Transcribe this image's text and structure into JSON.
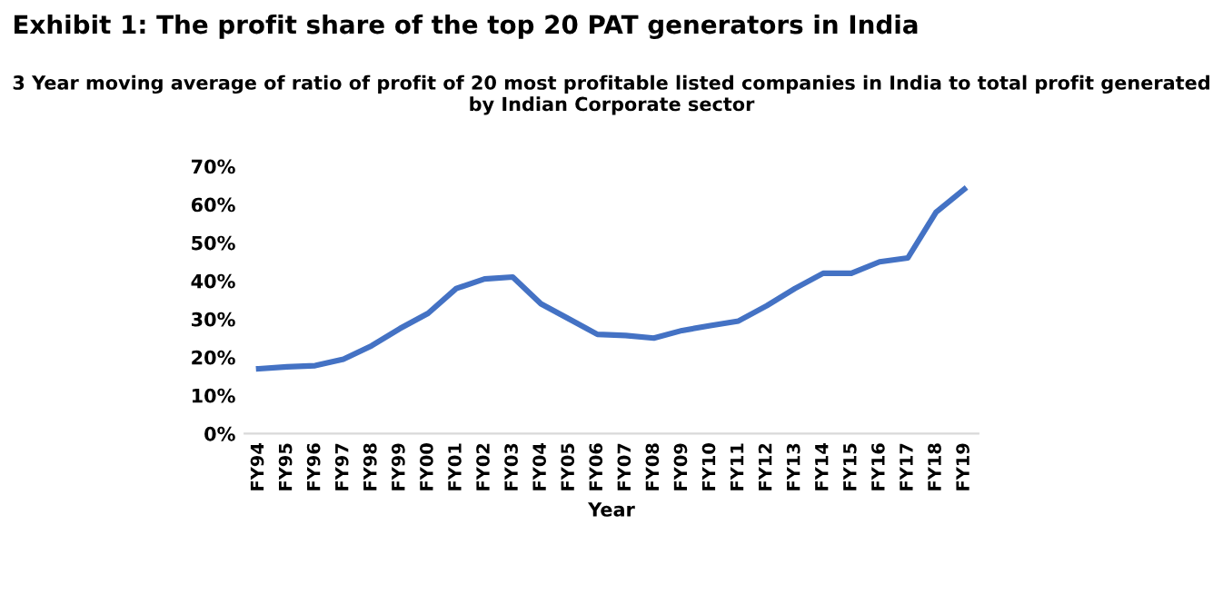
{
  "chart_data": {
    "type": "line",
    "title": "Exhibit 1: The profit share of the top 20 PAT generators in India",
    "subtitle": "3 Year moving average of ratio of profit of 20 most profitable listed companies in India to total profit generated by Indian Corporate sector",
    "xlabel": "Year",
    "categories": [
      "FY94",
      "FY95",
      "FY96",
      "FY97",
      "FY98",
      "FY99",
      "FY00",
      "FY01",
      "FY02",
      "FY03",
      "FY04",
      "FY05",
      "FY06",
      "FY07",
      "FY08",
      "FY09",
      "FY10",
      "FY11",
      "FY12",
      "FY13",
      "FY14",
      "FY15",
      "FY16",
      "FY17",
      "FY18",
      "FY19"
    ],
    "series": [
      {
        "color": "#4472c4",
        "values": [
          17,
          17.5,
          17.8,
          19.5,
          23,
          27.5,
          31.5,
          38,
          40.5,
          41,
          34,
          30,
          26,
          25.7,
          25,
          27,
          28.3,
          29.5,
          33.5,
          38,
          42,
          42,
          45,
          46,
          58,
          64
        ]
      }
    ],
    "ylim": [
      0,
      70
    ],
    "yticks": [
      {
        "value": 0,
        "label": "0%"
      },
      {
        "value": 10,
        "label": "10%"
      },
      {
        "value": 20,
        "label": "20%"
      },
      {
        "value": 30,
        "label": "30%"
      },
      {
        "value": 40,
        "label": "40%"
      },
      {
        "value": 50,
        "label": "50%"
      },
      {
        "value": 60,
        "label": "60%"
      },
      {
        "value": 70,
        "label": "70%"
      }
    ],
    "grid": false,
    "legend": false,
    "marker": "none",
    "line_style": "solid"
  }
}
